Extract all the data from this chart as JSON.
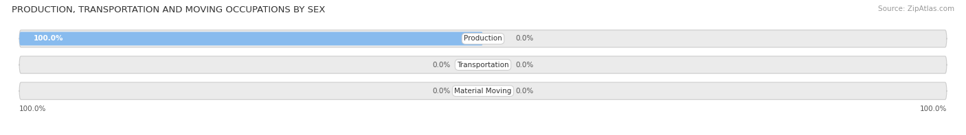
{
  "title": "PRODUCTION, TRANSPORTATION AND MOVING OCCUPATIONS BY SEX",
  "source": "Source: ZipAtlas.com",
  "categories": [
    "Production",
    "Transportation",
    "Material Moving"
  ],
  "male_values": [
    100.0,
    0.0,
    0.0
  ],
  "female_values": [
    0.0,
    0.0,
    0.0
  ],
  "male_color": "#88bbee",
  "female_color": "#f4a0b8",
  "bar_border_color": "#cccccc",
  "title_fontsize": 9.5,
  "source_fontsize": 7.5,
  "tick_fontsize": 7.5,
  "label_fontsize": 7.5,
  "legend_fontsize": 8,
  "bar_height": 0.52,
  "background_color": "#f5f5f5",
  "figure_bg": "#ffffff",
  "bar_bg_color": "#ebebeb"
}
